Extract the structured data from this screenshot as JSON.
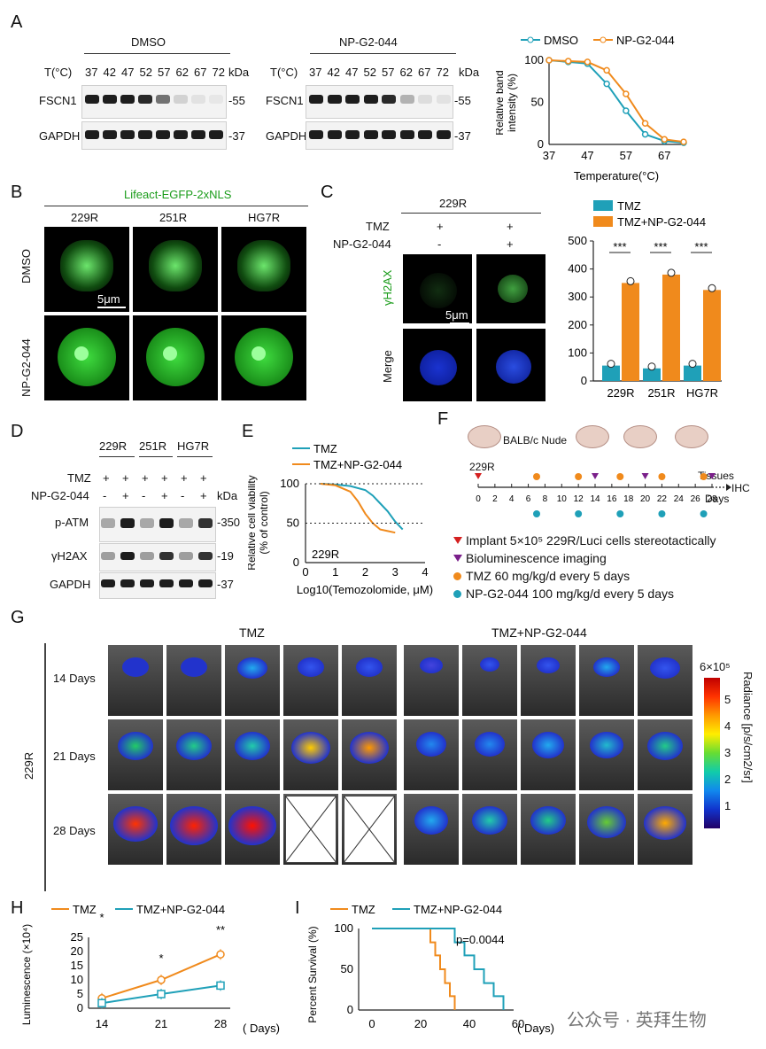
{
  "panels": {
    "A": "A",
    "B": "B",
    "C": "C",
    "D": "D",
    "E": "E",
    "F": "F",
    "G": "G",
    "H": "H",
    "I": "I"
  },
  "panelA": {
    "left_title": "DMSO",
    "right_title": "NP-G2-044",
    "temp_label": "T(°C)",
    "temps": [
      "37",
      "42",
      "47",
      "52",
      "57",
      "62",
      "67",
      "72"
    ],
    "kda": "kDa",
    "rows": [
      "FSCN1",
      "GAPDH"
    ],
    "sizes": [
      "55",
      "37"
    ]
  },
  "panelB": {
    "title": "Lifeact-EGFP-2xNLS",
    "cols": [
      "229R",
      "251R",
      "HG7R"
    ],
    "rows": [
      "DMSO",
      "NP-G2-044"
    ],
    "scalebar": "5μm",
    "title_color": "#1a9c1a"
  },
  "panelC": {
    "title": "229R",
    "row_labels": [
      "TMZ",
      "NP-G2-044"
    ],
    "col1_signs": [
      "+",
      "-"
    ],
    "col2_signs": [
      "+",
      "+"
    ],
    "image_rows": [
      "γH2AX",
      "Merge"
    ],
    "scalebar": "5μm"
  },
  "panelD": {
    "cols": [
      "229R",
      "251R",
      "HG7R"
    ],
    "treat": [
      "TMZ",
      "NP-G2-044"
    ],
    "tmz_signs": [
      "+",
      "+",
      "+",
      "+",
      "+",
      "+"
    ],
    "np_signs": [
      "-",
      "+",
      "-",
      "+",
      "-",
      "+"
    ],
    "kda": "kDa",
    "rows": [
      "p-ATM",
      "γH2AX",
      "GAPDH"
    ],
    "sizes": [
      "350",
      "19",
      "37"
    ]
  },
  "panelF": {
    "mouse_label": "BALB/c Nude",
    "implant_label": "229R",
    "tissues": "Tissues",
    "ihc": "IHC",
    "days_label": "Days",
    "ticks": [
      "0",
      "2",
      "4",
      "6",
      "8",
      "10",
      "12",
      "14",
      "16",
      "18",
      "20",
      "22",
      "24",
      "26",
      "28"
    ],
    "legend": [
      {
        "text": "Implant 5×10⁵ 229R/Luci cells stereotactically",
        "color": "#d42020",
        "marker": "down-triangle"
      },
      {
        "text": "Bioluminescence imaging",
        "color": "#7a1f8a",
        "marker": "down-triangle"
      },
      {
        "text": "TMZ 60 mg/kg/d every 5 days",
        "color": "#f08a1c",
        "marker": "dot"
      },
      {
        "text": "NP-G2-044 100 mg/kg/d every 5 days",
        "color": "#1fa0b8",
        "marker": "dot"
      }
    ]
  },
  "panelG": {
    "group_labels": [
      "TMZ",
      "TMZ+NP-G2-044"
    ],
    "side_label": "229R",
    "rows": [
      "14 Days",
      "21 Days",
      "28 Days"
    ],
    "colorbar_max": "6×10⁵",
    "colorbar_ticks": [
      "5",
      "4",
      "3",
      "2",
      "1"
    ],
    "colorbar_title": "Radiance [p/s/cm2/sr]"
  },
  "watermark": "公众号 · 英拜生物",
  "colors": {
    "tmz": "#f08a1c",
    "np": "#1fa0b8",
    "dmso": "#1fa0b8"
  },
  "chart_data": [
    {
      "id": "A-curve",
      "type": "line",
      "xlabel": "Temperature(°C)",
      "ylabel": "Relative band intensity (%)",
      "xlim": [
        37,
        72
      ],
      "ylim": [
        0,
        100
      ],
      "xticks": [
        "37",
        "47",
        "57",
        "67"
      ],
      "yticks": [
        "0",
        "50",
        "100"
      ],
      "legend": "top",
      "series": [
        {
          "name": "DMSO",
          "color": "#1fa0b8",
          "x": [
            37,
            42,
            47,
            52,
            57,
            62,
            67,
            72
          ],
          "y": [
            100,
            98,
            96,
            72,
            40,
            12,
            4,
            2
          ]
        },
        {
          "name": "NP-G2-044",
          "color": "#f08a1c",
          "x": [
            37,
            42,
            47,
            52,
            57,
            62,
            67,
            72
          ],
          "y": [
            100,
            99,
            98,
            88,
            60,
            25,
            6,
            3
          ]
        }
      ]
    },
    {
      "id": "C-bar",
      "type": "bar",
      "categories": [
        "229R",
        "251R",
        "HG7R"
      ],
      "ylim": [
        0,
        500
      ],
      "yticks": [
        "0",
        "100",
        "200",
        "300",
        "400",
        "500"
      ],
      "legend": "top",
      "series": [
        {
          "name": "TMZ",
          "color": "#1fa0b8",
          "values": [
            55,
            45,
            55
          ]
        },
        {
          "name": "TMZ+NP-G2-044",
          "color": "#f08a1c",
          "values": [
            350,
            380,
            325
          ]
        }
      ],
      "annotations": [
        "***",
        "***",
        "***"
      ]
    },
    {
      "id": "E-curve",
      "type": "line",
      "xlabel": "Log10(Temozolomide, μM)",
      "ylabel": "Relative cell viability (% of control)",
      "xlim": [
        0,
        4
      ],
      "ylim": [
        0,
        100
      ],
      "xticks": [
        "0",
        "1",
        "2",
        "3",
        "4"
      ],
      "yticks": [
        "0",
        "50",
        "100"
      ],
      "legend": "top",
      "inset_label": "229R",
      "series": [
        {
          "name": "TMZ",
          "color": "#1fa0b8",
          "x": [
            0.5,
            1,
            1.5,
            2,
            2.25,
            2.5,
            2.75,
            3,
            3.25
          ],
          "y": [
            100,
            99,
            97,
            92,
            85,
            75,
            65,
            52,
            42
          ]
        },
        {
          "name": "TMZ+NP-G2-044",
          "color": "#f08a1c",
          "x": [
            0.5,
            1,
            1.5,
            1.75,
            2,
            2.25,
            2.5,
            2.75,
            3
          ],
          "y": [
            100,
            98,
            90,
            78,
            62,
            50,
            42,
            40,
            38
          ]
        }
      ]
    },
    {
      "id": "H-line",
      "type": "line",
      "xlabel": "( Days)",
      "ylabel": "Luminescence (×10⁴)",
      "categories": [
        "14",
        "21",
        "28"
      ],
      "ylim": [
        0,
        25
      ],
      "yticks": [
        "0",
        "5",
        "10",
        "15",
        "20",
        "25"
      ],
      "legend": "top",
      "series": [
        {
          "name": "TMZ",
          "color": "#f08a1c",
          "values": [
            3.5,
            10,
            19
          ]
        },
        {
          "name": "TMZ+NP-G2-044",
          "color": "#1fa0b8",
          "values": [
            1.8,
            5,
            8
          ]
        }
      ],
      "annotations": [
        "*",
        "*",
        "**"
      ]
    },
    {
      "id": "I-survival",
      "type": "line",
      "xlabel": "( Days)",
      "ylabel": "Percent Survival (%)",
      "xlim": [
        0,
        60
      ],
      "ylim": [
        0,
        100
      ],
      "xticks": [
        "0",
        "20",
        "40",
        "60"
      ],
      "yticks": [
        "0",
        "50",
        "100"
      ],
      "legend": "top",
      "annotation": "p=0.0044",
      "series": [
        {
          "name": "TMZ",
          "color": "#f08a1c",
          "x": [
            0,
            24,
            24,
            26,
            26,
            28,
            28,
            30,
            30,
            32,
            32,
            34,
            34
          ],
          "y": [
            100,
            100,
            83,
            83,
            67,
            67,
            50,
            50,
            33,
            33,
            17,
            17,
            0
          ]
        },
        {
          "name": "TMZ+NP-G2-044",
          "color": "#1fa0b8",
          "x": [
            0,
            34,
            34,
            38,
            38,
            42,
            42,
            46,
            46,
            50,
            50,
            54,
            54
          ],
          "y": [
            100,
            100,
            83,
            83,
            67,
            67,
            50,
            50,
            33,
            33,
            17,
            17,
            0
          ]
        }
      ]
    }
  ]
}
